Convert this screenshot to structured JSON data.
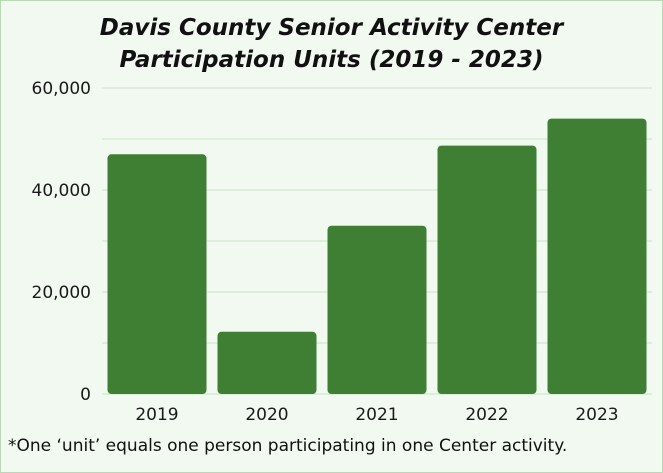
{
  "colors": {
    "background": "#f1f9f0",
    "bar": "#3f7f33",
    "grid": "#c9e3c4",
    "text": "#111111"
  },
  "chart_data": {
    "type": "bar",
    "title_line1": "Davis County Senior Activity Center",
    "title_line2": "Participation Units (2019 - 2023)",
    "xlabel": "",
    "ylabel": "",
    "categories": [
      "2019",
      "2020",
      "2021",
      "2022",
      "2023"
    ],
    "values": [
      47000,
      12200,
      33000,
      48700,
      54000
    ],
    "ylim": [
      0,
      60000
    ],
    "yticks": [
      0,
      20000,
      40000,
      60000
    ],
    "ytick_labels": [
      "0",
      "20,000",
      "40,000",
      "60,000"
    ],
    "grid": true,
    "footnote": "*One ‘unit’ equals one person participating in one Center activity."
  }
}
